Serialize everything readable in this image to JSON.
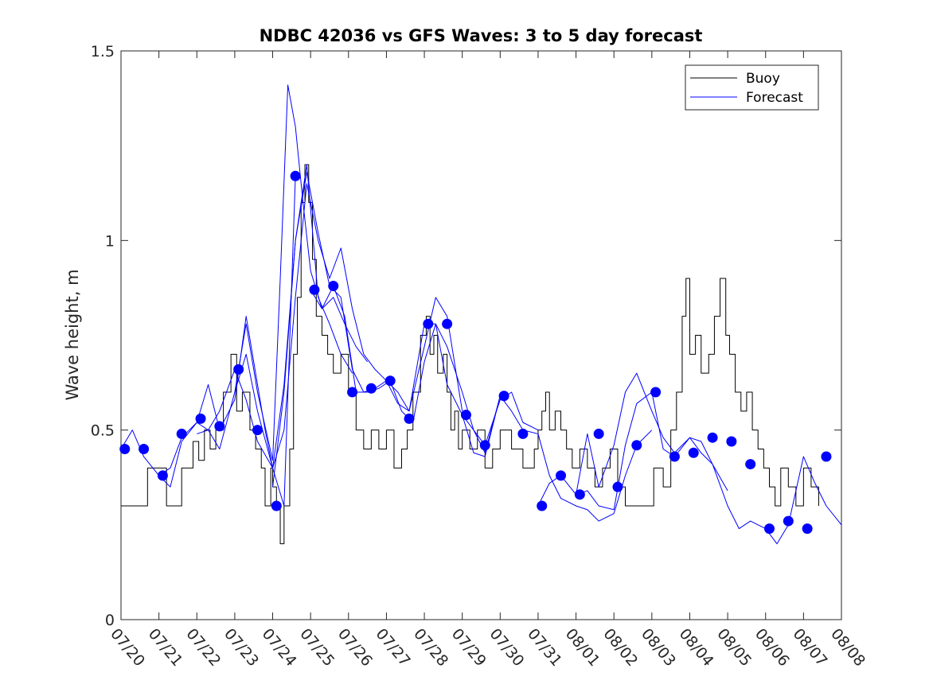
{
  "chart_data": {
    "type": "line",
    "title": "NDBC 42036 vs GFS Waves: 3 to 5 day forecast",
    "xlabel": "",
    "ylabel": "Wave height, m",
    "ylim": [
      0,
      1.5
    ],
    "y_ticks": [
      0,
      0.5,
      1,
      1.5
    ],
    "y_tick_labels": [
      "0",
      "0.5",
      "1",
      "1.5"
    ],
    "x_range_days": [
      0,
      19
    ],
    "x_ticks": [
      0,
      1,
      2,
      3,
      4,
      5,
      6,
      7,
      8,
      9,
      10,
      11,
      12,
      13,
      14,
      15,
      16,
      17,
      18,
      19
    ],
    "x_tick_labels": [
      "07/20",
      "07/21",
      "07/22",
      "07/23",
      "07/24",
      "07/25",
      "07/26",
      "07/27",
      "07/28",
      "07/29",
      "07/30",
      "07/31",
      "08/01",
      "08/02",
      "08/03",
      "08/04",
      "08/05",
      "08/06",
      "08/07",
      "08/08"
    ],
    "grid": false,
    "legend_position": "top-right",
    "legend": [
      {
        "label": "Buoy",
        "color": "#000000"
      },
      {
        "label": "Forecast",
        "color": "#0000ff"
      }
    ],
    "series": [
      {
        "name": "Buoy",
        "color": "#000000",
        "x": [
          0,
          0.65,
          0.7,
          1.2,
          1.3,
          1.6,
          1.9,
          2.05,
          2.2,
          2.35,
          2.5,
          2.7,
          2.9,
          3.05,
          3.2,
          3.4,
          3.55,
          3.7,
          3.8,
          3.95,
          4.0,
          4.1,
          4.2,
          4.3,
          4.45,
          4.55,
          4.65,
          4.75,
          4.85,
          4.95,
          5.05,
          5.15,
          5.3,
          5.45,
          5.6,
          5.8,
          6.0,
          6.2,
          6.4,
          6.6,
          6.8,
          7.0,
          7.2,
          7.4,
          7.55,
          7.7,
          7.9,
          8.05,
          8.15,
          8.25,
          8.35,
          8.5,
          8.6,
          8.7,
          8.8,
          8.9,
          9.0,
          9.2,
          9.4,
          9.6,
          9.8,
          10.0,
          10.3,
          10.6,
          10.9,
          11.0,
          11.1,
          11.2,
          11.3,
          11.45,
          11.6,
          11.75,
          11.9,
          12.1,
          12.3,
          12.5,
          12.7,
          12.9,
          13.1,
          13.3,
          13.55,
          13.8,
          14.05,
          14.3,
          14.5,
          14.65,
          14.8,
          14.9,
          15.0,
          15.15,
          15.3,
          15.5,
          15.65,
          15.8,
          15.95,
          16.05,
          16.2,
          16.35,
          16.5,
          16.65,
          16.8,
          16.95,
          17.1,
          17.25,
          17.4,
          17.6,
          17.8,
          18.0,
          18.2,
          18.4
        ],
        "values": [
          0.3,
          0.3,
          0.4,
          0.3,
          0.3,
          0.4,
          0.47,
          0.42,
          0.5,
          0.45,
          0.5,
          0.6,
          0.7,
          0.55,
          0.6,
          0.5,
          0.45,
          0.4,
          0.3,
          0.4,
          0.35,
          0.3,
          0.2,
          0.3,
          0.45,
          0.7,
          0.85,
          1.1,
          1.2,
          1.1,
          0.95,
          0.8,
          0.75,
          0.7,
          0.65,
          0.7,
          0.6,
          0.5,
          0.45,
          0.5,
          0.45,
          0.5,
          0.4,
          0.45,
          0.5,
          0.6,
          0.75,
          0.8,
          0.7,
          0.75,
          0.65,
          0.7,
          0.6,
          0.5,
          0.55,
          0.45,
          0.5,
          0.45,
          0.5,
          0.4,
          0.45,
          0.5,
          0.45,
          0.4,
          0.45,
          0.5,
          0.55,
          0.6,
          0.5,
          0.55,
          0.5,
          0.45,
          0.4,
          0.45,
          0.4,
          0.35,
          0.4,
          0.45,
          0.35,
          0.3,
          0.3,
          0.3,
          0.4,
          0.35,
          0.5,
          0.6,
          0.8,
          0.9,
          0.7,
          0.75,
          0.65,
          0.7,
          0.8,
          0.9,
          0.75,
          0.7,
          0.6,
          0.55,
          0.6,
          0.5,
          0.45,
          0.4,
          0.35,
          0.3,
          0.4,
          0.35,
          0.3,
          0.4,
          0.35,
          0.3
        ]
      },
      {
        "name": "Forecast",
        "color": "#0000ff",
        "x": [
          0,
          0.3,
          0.6,
          1.0,
          1.3,
          1.6,
          2.0,
          2.3,
          2.6,
          3.0,
          3.3,
          3.6,
          4.0,
          4.3,
          4.6
        ],
        "values": [
          0.45,
          0.5,
          0.43,
          0.38,
          0.4,
          0.48,
          0.52,
          0.5,
          0.55,
          0.66,
          0.58,
          0.47,
          0.4,
          0.3,
          1.17
        ]
      },
      {
        "x": [
          1.0,
          1.3,
          1.6,
          2.0,
          2.3,
          2.6,
          3.0,
          3.3,
          3.6,
          3.8,
          4.0,
          4.3,
          4.6,
          4.9,
          5.2,
          5.5,
          5.8,
          6.1
        ],
        "values": [
          0.38,
          0.35,
          0.47,
          0.52,
          0.62,
          0.5,
          0.58,
          0.8,
          0.62,
          0.5,
          0.4,
          0.62,
          1.0,
          1.2,
          0.85,
          0.78,
          0.7,
          0.65
        ]
      },
      {
        "x": [
          2.0,
          2.3,
          2.6,
          3.0,
          3.3,
          3.6,
          4.0,
          4.2,
          4.4,
          4.6,
          4.8,
          5.0,
          5.3,
          5.6,
          5.9,
          6.2,
          6.5
        ],
        "values": [
          0.49,
          0.5,
          0.45,
          0.6,
          0.78,
          0.6,
          0.42,
          0.9,
          1.41,
          1.3,
          1.1,
          0.92,
          0.82,
          0.85,
          0.78,
          0.72,
          0.68
        ]
      },
      {
        "x": [
          3.0,
          3.3,
          3.6,
          4.0,
          4.3,
          4.6,
          4.9,
          5.2,
          5.5,
          5.8,
          6.1,
          6.4,
          6.7,
          7.0,
          7.3,
          7.6,
          8.0,
          8.3,
          8.6,
          9.0
        ],
        "values": [
          0.6,
          0.7,
          0.55,
          0.4,
          0.5,
          0.85,
          1.15,
          1.0,
          0.9,
          0.98,
          0.82,
          0.7,
          0.66,
          0.63,
          0.6,
          0.55,
          0.72,
          0.85,
          0.8,
          0.55
        ]
      },
      {
        "x": [
          4.0,
          4.3,
          4.6,
          4.9,
          5.2,
          5.5,
          5.8,
          6.1,
          6.4,
          6.7,
          7.0,
          7.3,
          7.6,
          8.0,
          8.3,
          8.6,
          9.0,
          9.3,
          9.6,
          10.0
        ],
        "values": [
          0.35,
          0.6,
          1.0,
          1.18,
          1.02,
          0.88,
          0.85,
          0.66,
          0.6,
          0.61,
          0.63,
          0.57,
          0.55,
          0.78,
          0.78,
          0.62,
          0.54,
          0.44,
          0.43,
          0.59
        ]
      },
      {
        "x": [
          5.0,
          5.3,
          5.6,
          5.9,
          6.2,
          6.5,
          6.8,
          7.1,
          7.4,
          7.7,
          8.0,
          8.3,
          8.6,
          9.0,
          9.3,
          9.6,
          10.0,
          10.3,
          10.6,
          11.0
        ],
        "values": [
          0.87,
          0.82,
          0.88,
          0.8,
          0.6,
          0.6,
          0.61,
          0.63,
          0.55,
          0.52,
          0.68,
          0.78,
          0.72,
          0.6,
          0.5,
          0.46,
          0.58,
          0.6,
          0.52,
          0.5
        ]
      },
      {
        "x": [
          9.0,
          9.3,
          9.6,
          10.0,
          10.3,
          10.6,
          11.0,
          11.3,
          11.6,
          12.0,
          12.3,
          12.6,
          13.0,
          13.3,
          13.6,
          14.0
        ],
        "values": [
          0.54,
          0.5,
          0.44,
          0.59,
          0.55,
          0.5,
          0.49,
          0.38,
          0.32,
          0.3,
          0.29,
          0.26,
          0.28,
          0.38,
          0.46,
          0.5
        ]
      },
      {
        "x": [
          11.0,
          11.3,
          11.6,
          12.0,
          12.3,
          12.6,
          13.0,
          13.3,
          13.6,
          14.0,
          14.3,
          14.6,
          15.0,
          15.3,
          15.6,
          16.0
        ],
        "values": [
          0.3,
          0.36,
          0.38,
          0.33,
          0.49,
          0.35,
          0.46,
          0.6,
          0.65,
          0.55,
          0.48,
          0.44,
          0.48,
          0.47,
          0.41,
          0.34
        ]
      },
      {
        "x": [
          12.0,
          12.3,
          12.6,
          13.0,
          13.3,
          13.6,
          14.0,
          14.3,
          14.6,
          15.0,
          15.3,
          15.6,
          16.0,
          16.3,
          16.6,
          17.0,
          17.3,
          17.6,
          18.0,
          18.3,
          18.6,
          19.0
        ],
        "values": [
          0.33,
          0.34,
          0.3,
          0.29,
          0.46,
          0.57,
          0.6,
          0.45,
          0.43,
          0.48,
          0.44,
          0.41,
          0.3,
          0.24,
          0.26,
          0.24,
          0.2,
          0.25,
          0.43,
          0.36,
          0.3,
          0.25
        ]
      }
    ],
    "markers": {
      "name": "Forecast points",
      "x": [
        0.1,
        0.6,
        1.1,
        1.6,
        2.1,
        2.6,
        3.1,
        3.6,
        4.1,
        4.6,
        5.1,
        5.6,
        6.1,
        6.6,
        7.1,
        7.6,
        8.1,
        8.6,
        9.1,
        9.6,
        10.1,
        10.6,
        11.1,
        11.6,
        12.1,
        12.6,
        13.1,
        13.6,
        14.1,
        14.6,
        15.1,
        15.6,
        16.1,
        16.6,
        17.1,
        17.6,
        18.1,
        18.6
      ],
      "values": [
        0.45,
        0.45,
        0.38,
        0.49,
        0.53,
        0.51,
        0.66,
        0.5,
        0.3,
        1.17,
        0.87,
        0.88,
        0.6,
        0.61,
        0.63,
        0.53,
        0.78,
        0.78,
        0.54,
        0.46,
        0.59,
        0.49,
        0.3,
        0.38,
        0.33,
        0.49,
        0.35,
        0.46,
        0.6,
        0.43,
        0.44,
        0.48,
        0.47,
        0.41,
        0.24,
        0.26,
        0.24,
        0.43
      ]
    }
  }
}
